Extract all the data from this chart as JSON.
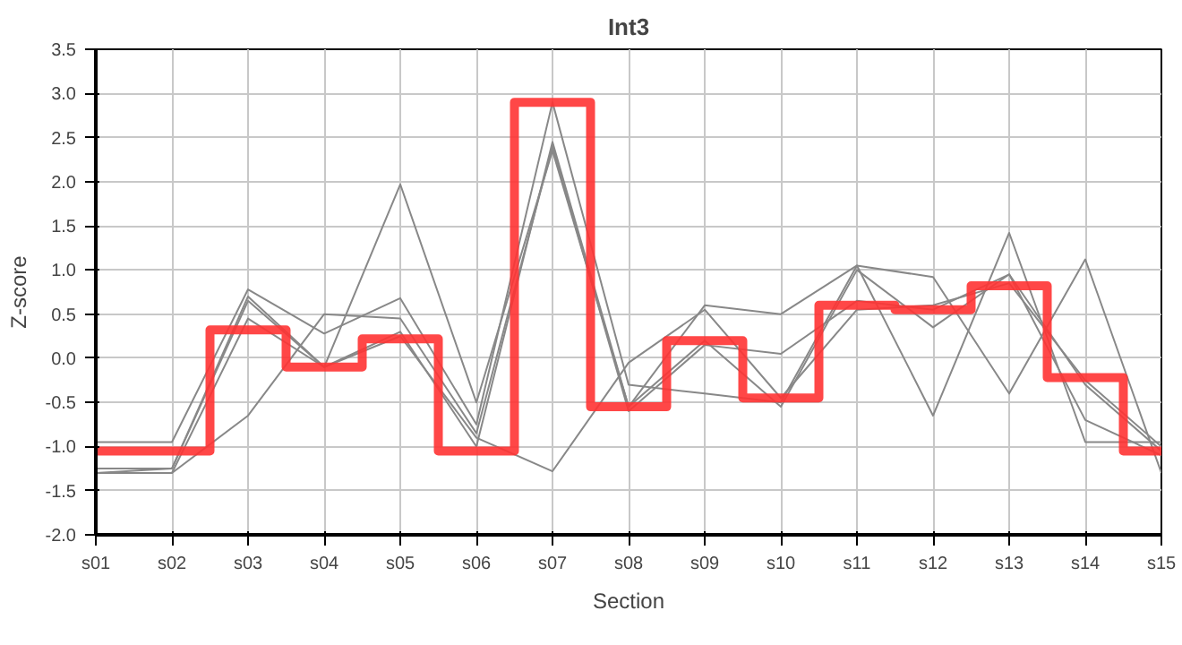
{
  "chart_data": {
    "type": "line",
    "title": "Int3",
    "xlabel": "Section",
    "ylabel": "Z-score",
    "categories": [
      "s01",
      "s02",
      "s03",
      "s04",
      "s05",
      "s06",
      "s07",
      "s08",
      "s09",
      "s10",
      "s11",
      "s12",
      "s13",
      "s14",
      "s15"
    ],
    "ylim": [
      -2.0,
      3.5
    ],
    "yticks": [
      {
        "value": -2,
        "label": "-2.0"
      },
      {
        "value": -1.5,
        "label": "-1.5"
      },
      {
        "value": -1,
        "label": "-1.0"
      },
      {
        "value": -0.5,
        "label": "-0.5"
      },
      {
        "value": 0,
        "label": "0.0"
      },
      {
        "value": 0.5,
        "label": "0.5"
      },
      {
        "value": 1,
        "label": "1.0"
      },
      {
        "value": 1.5,
        "label": "1.5"
      },
      {
        "value": 2,
        "label": "2.0"
      },
      {
        "value": 2.5,
        "label": "2.5"
      },
      {
        "value": 3,
        "label": "3.0"
      },
      {
        "value": 3.5,
        "label": "3.5"
      }
    ],
    "grid": true,
    "marker": "none",
    "line_style": "solid",
    "series": [
      {
        "color": "#888888",
        "values": [
          -0.95,
          -0.95,
          0.78,
          0.28,
          0.68,
          -0.75,
          2.9,
          -0.3,
          -0.4,
          -0.5,
          1.05,
          -0.65,
          1.42,
          -0.95,
          -0.95
        ]
      },
      {
        "color": "#888888",
        "values": [
          -1.25,
          -1.25,
          0.7,
          -0.1,
          1.97,
          -0.5,
          2.35,
          -0.55,
          0.6,
          0.5,
          1.05,
          0.92,
          -0.4,
          1.12,
          -1.3
        ]
      },
      {
        "color": "#888888",
        "values": [
          -1.3,
          -1.3,
          0.45,
          -0.1,
          0.3,
          -1.0,
          2.45,
          -0.55,
          0.2,
          -0.55,
          1.0,
          0.35,
          0.95,
          -0.7,
          -1.1
        ]
      },
      {
        "color": "#888888",
        "values": [
          -1.3,
          -1.3,
          -0.65,
          0.5,
          0.45,
          -0.85,
          2.4,
          -0.6,
          0.15,
          0.05,
          0.65,
          0.55,
          0.95,
          -0.3,
          -1.05
        ]
      },
      {
        "color": "#888888",
        "values": [
          -1.3,
          -1.25,
          0.65,
          -0.1,
          0.25,
          -0.9,
          -1.28,
          -0.05,
          0.55,
          -0.45,
          0.55,
          0.6,
          0.85,
          -0.25,
          -1.0
        ]
      },
      {
        "type": "step",
        "color": "#ff3333",
        "values": [
          -1.05,
          -1.05,
          0.32,
          -0.1,
          0.22,
          -1.05,
          2.9,
          -0.55,
          0.2,
          -0.45,
          0.6,
          0.55,
          0.82,
          -0.22,
          -1.05
        ]
      }
    ]
  }
}
